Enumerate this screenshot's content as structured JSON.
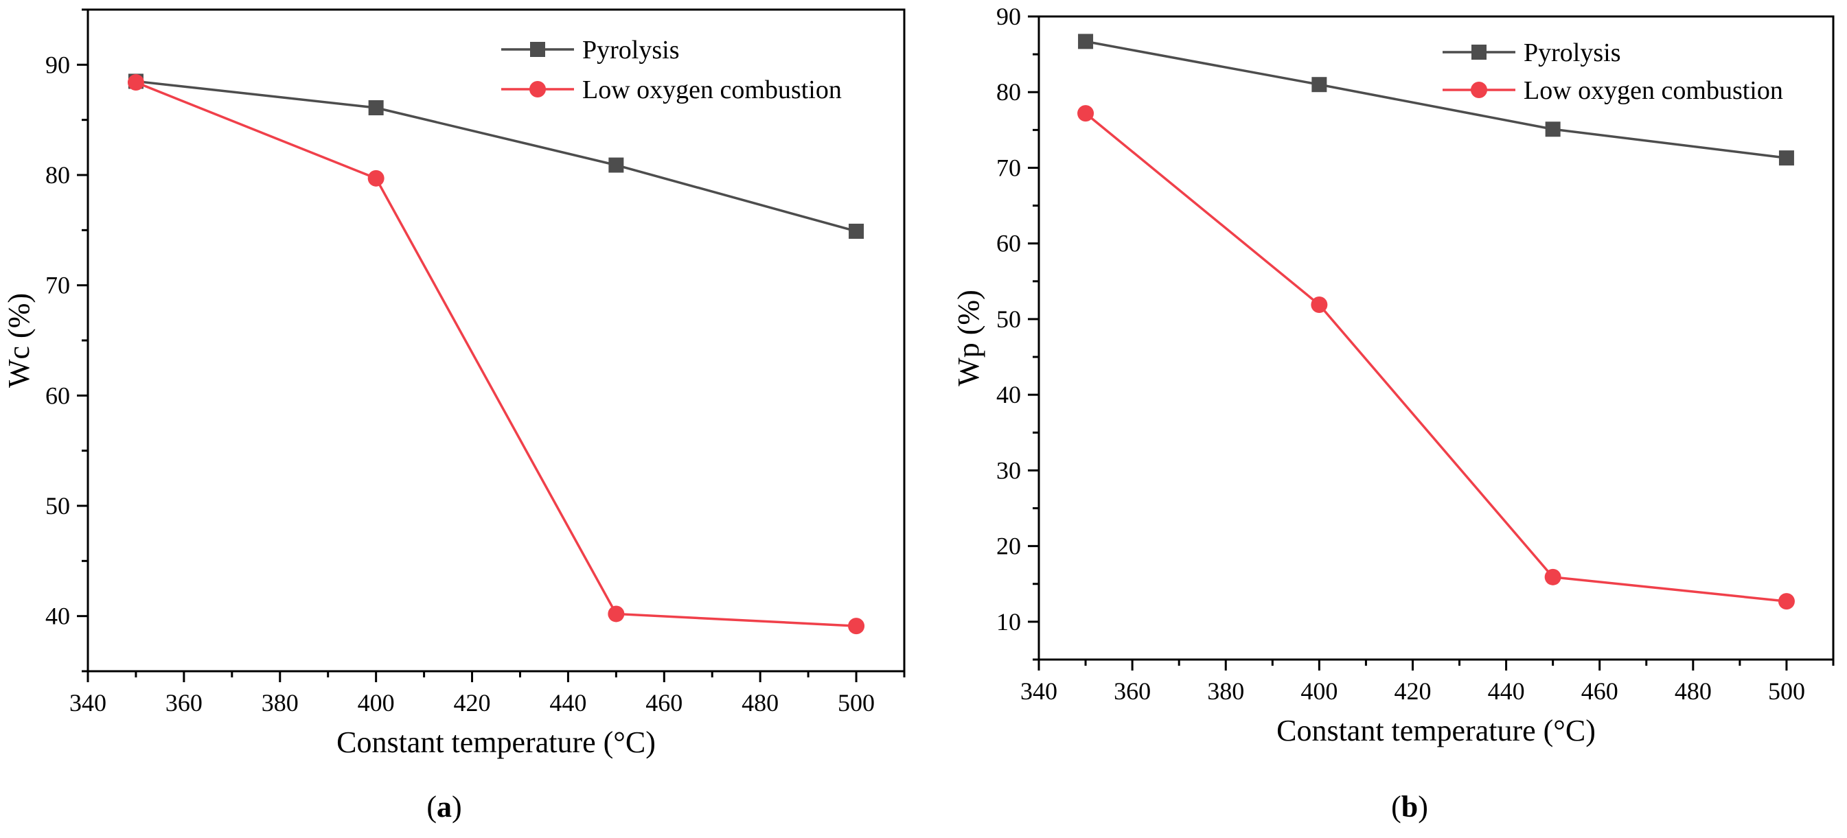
{
  "chart_data": [
    {
      "type": "line",
      "panel": "a",
      "caption_letter": "a",
      "xlabel": "Constant temperature (°C)",
      "ylabel": "Wc (%)",
      "xlim": [
        340,
        510
      ],
      "ylim": [
        35,
        95
      ],
      "xticks": [
        340,
        360,
        380,
        400,
        420,
        440,
        460,
        480,
        500
      ],
      "yticks": [
        40,
        50,
        60,
        70,
        80,
        90
      ],
      "legend_position": "top-right",
      "x": [
        350,
        400,
        450,
        500
      ],
      "series": [
        {
          "name": "Pyrolysis",
          "color": "#4d4d4d",
          "marker": "square",
          "values": [
            88.5,
            86.1,
            80.9,
            74.9
          ]
        },
        {
          "name": "Low oxygen combustion",
          "color": "#f0404a",
          "marker": "circle",
          "values": [
            88.4,
            79.7,
            40.2,
            39.1
          ]
        }
      ]
    },
    {
      "type": "line",
      "panel": "b",
      "caption_letter": "b",
      "xlabel": "Constant temperature (°C)",
      "ylabel": "Wp (%)",
      "xlim": [
        340,
        510
      ],
      "ylim": [
        5,
        90
      ],
      "xticks": [
        340,
        360,
        380,
        400,
        420,
        440,
        460,
        480,
        500
      ],
      "yticks": [
        10,
        20,
        30,
        40,
        50,
        60,
        70,
        80,
        90
      ],
      "legend_position": "top-right",
      "x": [
        350,
        400,
        450,
        500
      ],
      "series": [
        {
          "name": "Pyrolysis",
          "color": "#4d4d4d",
          "marker": "square",
          "values": [
            86.7,
            81.0,
            75.1,
            71.3
          ]
        },
        {
          "name": "Low oxygen combustion",
          "color": "#f0404a",
          "marker": "circle",
          "values": [
            77.2,
            51.9,
            15.9,
            12.7
          ]
        }
      ]
    }
  ]
}
